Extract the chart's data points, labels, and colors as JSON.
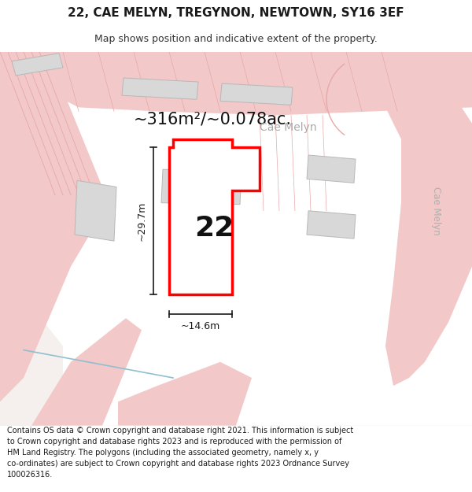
{
  "title": "22, CAE MELYN, TREGYNON, NEWTOWN, SY16 3EF",
  "subtitle": "Map shows position and indicative extent of the property.",
  "footer": "Contains OS data © Crown copyright and database right 2021. This information is subject to Crown copyright and database rights 2023 and is reproduced with the permission of HM Land Registry. The polygons (including the associated geometry, namely x, y co-ordinates) are subject to Crown copyright and database rights 2023 Ordnance Survey 100026316.",
  "area_label": "~316m²/~0.078ac.",
  "street_label": "Cae Melyn",
  "number_label": "22",
  "dim_h": "~29.7m",
  "dim_w": "~14.6m",
  "road_fill": "#f2c8c8",
  "road_line": "#e8a8a8",
  "building_fill": "#d8d8d8",
  "building_edge": "#b8b8b8",
  "property_edge": "#ff0000",
  "property_fill": "#ffffff",
  "map_bg": "#f5f0ee",
  "white_area": "#ffffff",
  "dim_color": "#1a1a1a",
  "title_color": "#1a1a1a",
  "footer_color": "#1a1a1a",
  "area_color": "#111111",
  "street_color": "#aaaaaa",
  "title_fontsize": 11,
  "subtitle_fontsize": 9,
  "footer_fontsize": 7,
  "area_fontsize": 15,
  "number_fontsize": 26,
  "street_fontsize": 10,
  "dim_fontsize": 9
}
